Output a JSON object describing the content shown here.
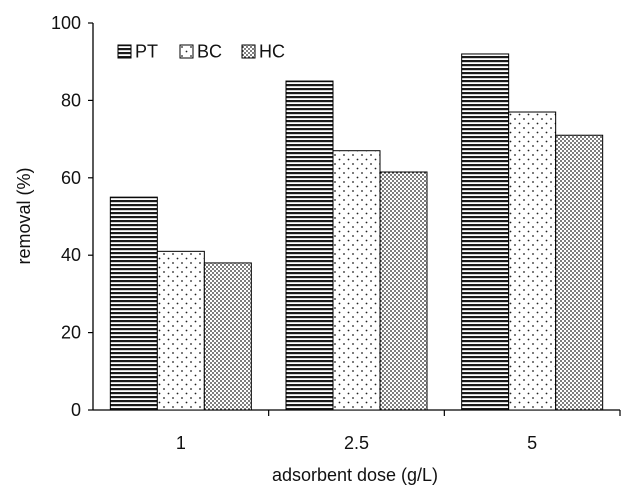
{
  "chart_data": {
    "type": "bar",
    "xlabel": "adsorbent dose (g/L)",
    "ylabel": "removal (%)",
    "categories": [
      "1",
      "2.5",
      "5"
    ],
    "series": [
      {
        "name": "PT",
        "values": [
          55,
          85,
          92
        ],
        "pattern": "horizontal-stripes"
      },
      {
        "name": "BC",
        "values": [
          41,
          67,
          77
        ],
        "pattern": "sparse-dots"
      },
      {
        "name": "HC",
        "values": [
          38,
          61.5,
          71
        ],
        "pattern": "dense-dots"
      }
    ],
    "ylim": [
      0,
      100
    ],
    "yticks": [
      0,
      20,
      40,
      60,
      80,
      100
    ],
    "legend_position": "top-left",
    "grid": false,
    "colors": {
      "stroke": "#000000",
      "background": "#ffffff",
      "fill": "#ffffff"
    }
  }
}
